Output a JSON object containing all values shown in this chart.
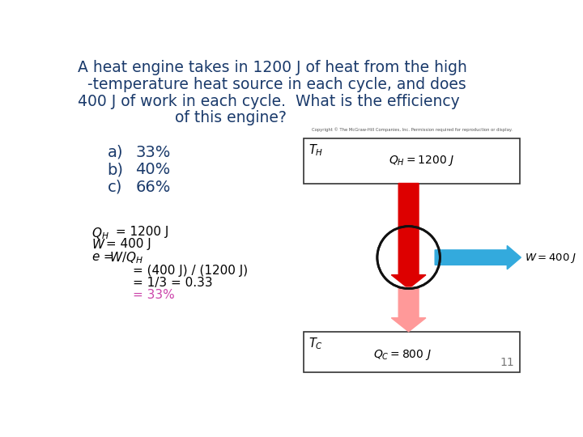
{
  "title_line1": "A heat engine takes in 1200 J of heat from the high",
  "title_line2": "  -temperature heat source in each cycle, and does",
  "title_line3": "400 J of work in each cycle.  What is the efficiency",
  "title_line4": "                    of this engine?",
  "choices_letter": [
    "a)",
    "b)",
    "c)"
  ],
  "choices_val": [
    "33%",
    "40%",
    "66%"
  ],
  "calc_lines": [
    "= (400 J) / (1200 J)",
    "= 1/3 = 0.33",
    "= 33%"
  ],
  "calc_colors": [
    "#000000",
    "#000000",
    "#cc44aa"
  ],
  "title_color": "#1a3a6b",
  "choice_color": "#1a3a6b",
  "sol_color": "#000000",
  "bg_color": "#ffffff",
  "copyright_text": "Copyright © The McGraw-Hill Companies, Inc. Permission required for reproduction or display.",
  "page_number": "11",
  "arrow_red_dark": "#dd0000",
  "arrow_red_light": "#ff9999",
  "arrow_blue": "#33aadd",
  "font_family": "Comic Sans MS"
}
